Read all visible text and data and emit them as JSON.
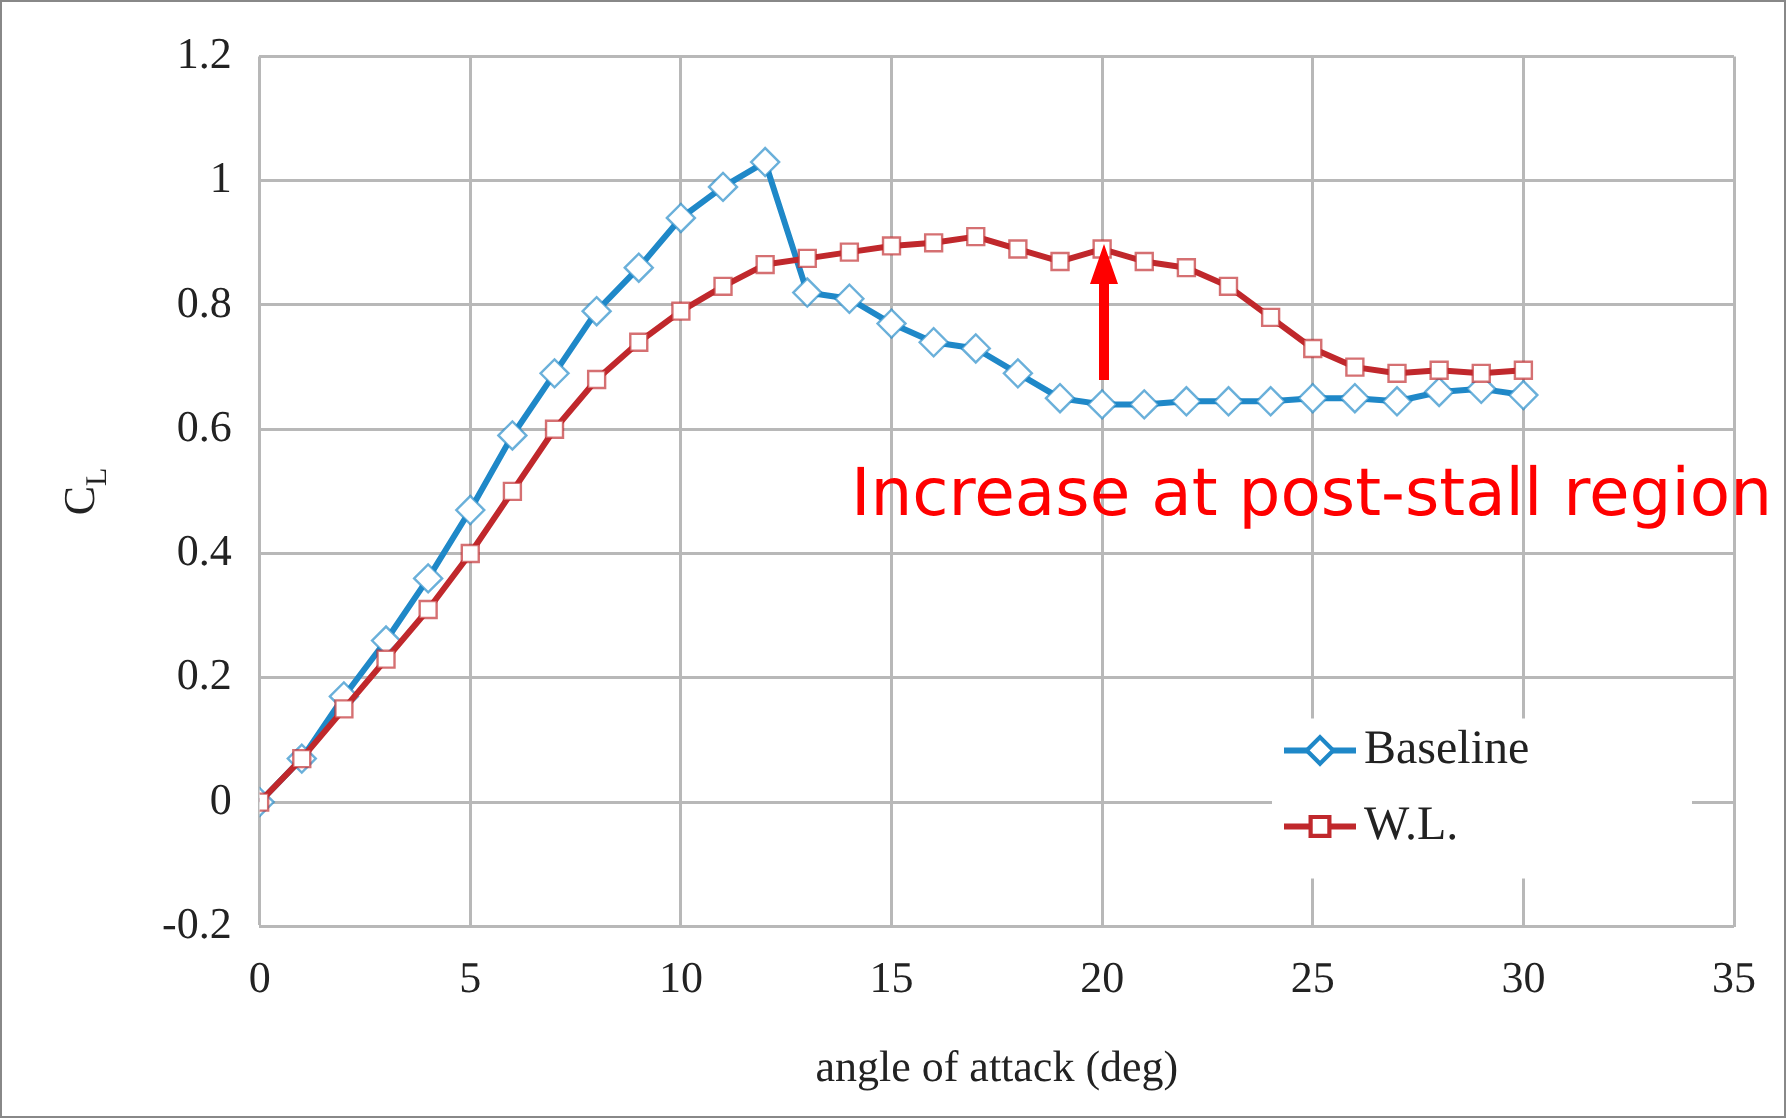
{
  "chart_data": {
    "type": "line",
    "xlabel": "angle of attack (deg)",
    "ylabel": "C$_{L}$",
    "xlim": [
      0,
      35
    ],
    "xticks": [
      0,
      5,
      10,
      15,
      20,
      25,
      30,
      35
    ],
    "ylim": [
      -0.2,
      1.2
    ],
    "yticks": [
      -0.2,
      0,
      0.2,
      0.4,
      0.6,
      0.8,
      1,
      1.2
    ],
    "grid": true,
    "legend": "bottom right",
    "line_style": "solid",
    "x": [
      0,
      1,
      2,
      3,
      4,
      5,
      6,
      7,
      8,
      9,
      10,
      11,
      12,
      13,
      14,
      15,
      16,
      17,
      18,
      19,
      20,
      21,
      22,
      23,
      24,
      25,
      26,
      27,
      28,
      29,
      30
    ],
    "series": [
      {
        "name": "Baseline",
        "color": "#1f88c8",
        "marker": "diamond",
        "values": [
          0,
          0.07,
          0.17,
          0.26,
          0.36,
          0.47,
          0.59,
          0.69,
          0.79,
          0.86,
          0.94,
          0.99,
          1.03,
          0.82,
          0.81,
          0.77,
          0.74,
          0.73,
          0.69,
          0.65,
          0.64,
          0.64,
          0.645,
          0.645,
          0.645,
          0.65,
          0.65,
          0.645,
          0.66,
          0.665,
          0.655
        ]
      },
      {
        "name": "W.L.",
        "color": "#c0282c",
        "marker": "square",
        "values": [
          0,
          0.07,
          0.15,
          0.23,
          0.31,
          0.4,
          0.5,
          0.6,
          0.68,
          0.74,
          0.79,
          0.83,
          0.865,
          0.875,
          0.885,
          0.895,
          0.9,
          0.91,
          0.89,
          0.87,
          0.89,
          0.87,
          0.86,
          0.83,
          0.78,
          0.73,
          0.7,
          0.69,
          0.695,
          0.69,
          0.695
        ]
      }
    ],
    "annotations": [
      "Increase at post-stall region"
    ]
  }
}
